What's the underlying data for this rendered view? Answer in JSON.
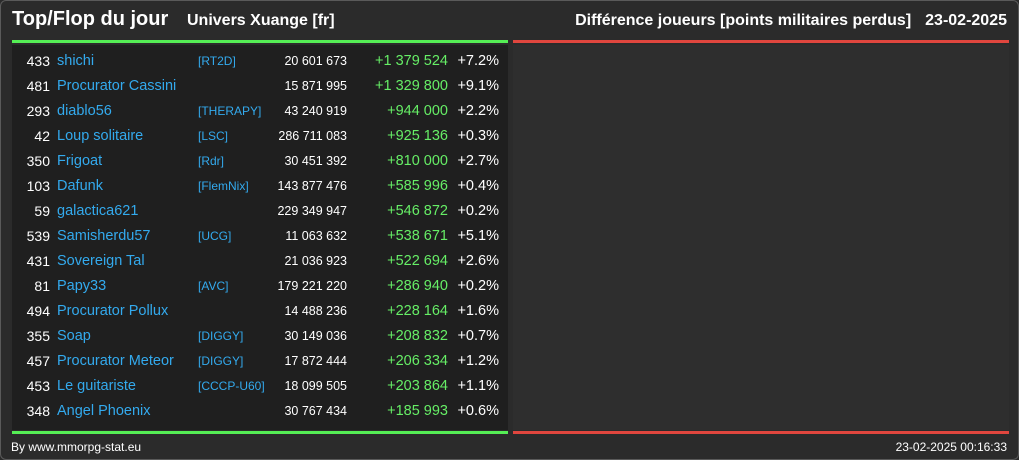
{
  "header": {
    "title": "Top/Flop du jour",
    "univers": "Univers Xuange [fr]",
    "subtitle": "Différence joueurs [points militaires perdus]",
    "date": "23-02-2025"
  },
  "colors": {
    "top_accent": "#55ee55",
    "flop_accent": "#e0463e",
    "player_name": "#33aaee",
    "positive_diff": "#66ee66"
  },
  "rows": [
    {
      "rank": "433",
      "name": "shichi",
      "alliance": "[RT2D]",
      "points": "20 601 673",
      "diff": "+1 379 524",
      "pct": "+7.2%"
    },
    {
      "rank": "481",
      "name": "Procurator Cassini",
      "alliance": "",
      "points": "15 871 995",
      "diff": "+1 329 800",
      "pct": "+9.1%"
    },
    {
      "rank": "293",
      "name": "diablo56",
      "alliance": "[THERAPY]",
      "points": "43 240 919",
      "diff": "+944 000",
      "pct": "+2.2%"
    },
    {
      "rank": "42",
      "name": "Loup solitaire",
      "alliance": "[LSC]",
      "points": "286 711 083",
      "diff": "+925 136",
      "pct": "+0.3%"
    },
    {
      "rank": "350",
      "name": "Frigoat",
      "alliance": "[Rdr]",
      "points": "30 451 392",
      "diff": "+810 000",
      "pct": "+2.7%"
    },
    {
      "rank": "103",
      "name": "Dafunk",
      "alliance": "[FlemNix]",
      "points": "143 877 476",
      "diff": "+585 996",
      "pct": "+0.4%"
    },
    {
      "rank": "59",
      "name": "galactica621",
      "alliance": "",
      "points": "229 349 947",
      "diff": "+546 872",
      "pct": "+0.2%"
    },
    {
      "rank": "539",
      "name": "Samisherdu57",
      "alliance": "[UCG]",
      "points": "11 063 632",
      "diff": "+538 671",
      "pct": "+5.1%"
    },
    {
      "rank": "431",
      "name": "Sovereign Tal",
      "alliance": "",
      "points": "21 036 923",
      "diff": "+522 694",
      "pct": "+2.6%"
    },
    {
      "rank": "81",
      "name": "Papy33",
      "alliance": "[AVC]",
      "points": "179 221 220",
      "diff": "+286 940",
      "pct": "+0.2%"
    },
    {
      "rank": "494",
      "name": "Procurator Pollux",
      "alliance": "",
      "points": "14 488 236",
      "diff": "+228 164",
      "pct": "+1.6%"
    },
    {
      "rank": "355",
      "name": "Soap",
      "alliance": "[DIGGY]",
      "points": "30 149 036",
      "diff": "+208 832",
      "pct": "+0.7%"
    },
    {
      "rank": "457",
      "name": "Procurator Meteor",
      "alliance": "[DIGGY]",
      "points": "17 872 444",
      "diff": "+206 334",
      "pct": "+1.2%"
    },
    {
      "rank": "453",
      "name": "Le guitariste",
      "alliance": "[CCCP-U60]",
      "points": "18 099 505",
      "diff": "+203 864",
      "pct": "+1.1%"
    },
    {
      "rank": "348",
      "name": "Angel Phoenix",
      "alliance": "",
      "points": "30 767 434",
      "diff": "+185 993",
      "pct": "+0.6%"
    }
  ],
  "footer": {
    "credit": "By www.mmorpg-stat.eu",
    "timestamp": "23-02-2025 00:16:33"
  }
}
